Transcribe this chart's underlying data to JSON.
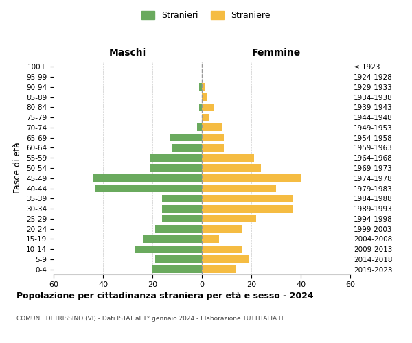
{
  "age_groups": [
    "0-4",
    "5-9",
    "10-14",
    "15-19",
    "20-24",
    "25-29",
    "30-34",
    "35-39",
    "40-44",
    "45-49",
    "50-54",
    "55-59",
    "60-64",
    "65-69",
    "70-74",
    "75-79",
    "80-84",
    "85-89",
    "90-94",
    "95-99",
    "100+"
  ],
  "birth_years": [
    "2019-2023",
    "2014-2018",
    "2009-2013",
    "2004-2008",
    "1999-2003",
    "1994-1998",
    "1989-1993",
    "1984-1988",
    "1979-1983",
    "1974-1978",
    "1969-1973",
    "1964-1968",
    "1959-1963",
    "1954-1958",
    "1949-1953",
    "1944-1948",
    "1939-1943",
    "1934-1938",
    "1929-1933",
    "1924-1928",
    "≤ 1923"
  ],
  "maschi": [
    20,
    19,
    27,
    24,
    19,
    16,
    16,
    16,
    43,
    44,
    21,
    21,
    12,
    13,
    2,
    0,
    1,
    0,
    1,
    0,
    0
  ],
  "femmine": [
    14,
    19,
    16,
    7,
    16,
    22,
    37,
    37,
    30,
    40,
    24,
    21,
    9,
    9,
    8,
    3,
    5,
    2,
    1,
    0,
    0
  ],
  "maschi_color": "#6aaa5e",
  "femmine_color": "#f5bc42",
  "background_color": "#ffffff",
  "grid_color": "#cccccc",
  "title": "Popolazione per cittadinanza straniera per età e sesso - 2024",
  "subtitle": "COMUNE DI TRISSINO (VI) - Dati ISTAT al 1° gennaio 2024 - Elaborazione TUTTITALIA.IT",
  "xlabel_left": "Maschi",
  "xlabel_right": "Femmine",
  "ylabel_left": "Fasce di età",
  "legend_maschi": "Stranieri",
  "legend_femmine": "Straniere",
  "xlim": 60
}
